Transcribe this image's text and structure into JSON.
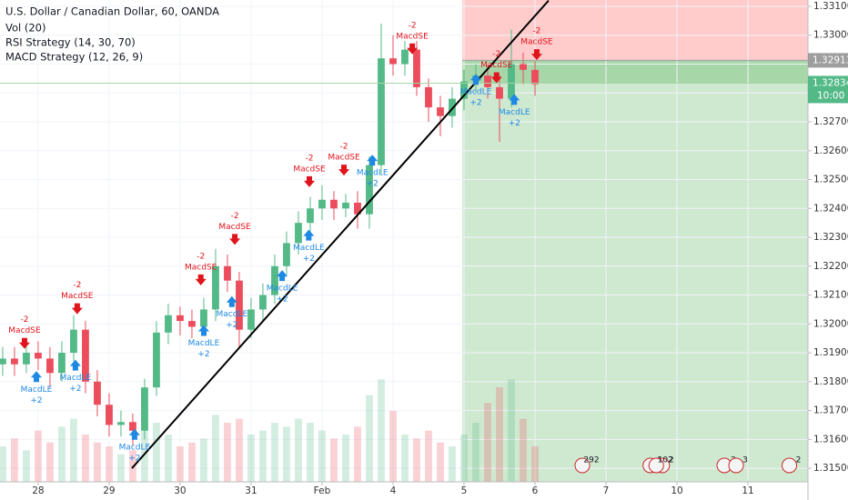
{
  "chart_data": {
    "type": "candlestick",
    "title": "U.S. Dollar / Canadian Dollar, 60, OANDA",
    "indicators": [
      "Vol (20)",
      "RSI Strategy (14, 30, 70)",
      "MACD Strategy (12, 26, 9)"
    ],
    "x": [
      -12,
      -8,
      -4,
      0,
      4,
      8,
      12,
      16,
      20,
      24,
      28,
      32,
      36,
      40,
      44,
      48,
      52,
      56,
      60,
      64,
      68,
      72,
      76,
      80,
      84,
      88,
      92,
      96,
      100,
      104,
      108,
      112,
      116,
      120,
      124,
      128,
      132,
      136,
      140,
      144,
      148,
      152,
      156,
      160,
      164,
      168
    ],
    "open": [
      1.3186,
      1.3188,
      1.3186,
      1.319,
      1.3188,
      1.3183,
      1.319,
      1.3198,
      1.318,
      1.3172,
      1.3165,
      1.3166,
      1.3163,
      1.3178,
      1.3197,
      1.3203,
      1.3201,
      1.3199,
      1.3205,
      1.322,
      1.3215,
      1.3198,
      1.3205,
      1.321,
      1.322,
      1.3228,
      1.3235,
      1.324,
      1.3243,
      1.324,
      1.3242,
      1.3238,
      1.3255,
      1.3292,
      1.329,
      1.3295,
      1.3282,
      1.3275,
      1.3272,
      1.3278,
      1.3284,
      1.3286,
      1.3282,
      1.3278,
      1.329,
      1.3288
    ],
    "high": [
      1.3192,
      1.3192,
      1.3194,
      1.3194,
      1.3192,
      1.3194,
      1.3203,
      1.3201,
      1.3184,
      1.3176,
      1.317,
      1.3169,
      1.3181,
      1.3201,
      1.3207,
      1.3206,
      1.3205,
      1.3209,
      1.3226,
      1.3224,
      1.3218,
      1.3209,
      1.3214,
      1.3224,
      1.3232,
      1.3239,
      1.3244,
      1.3248,
      1.3246,
      1.3245,
      1.3246,
      1.3258,
      1.3304,
      1.33,
      1.3298,
      1.3298,
      1.3285,
      1.3279,
      1.3282,
      1.3288,
      1.329,
      1.329,
      1.3286,
      1.3302,
      1.3294,
      1.3291
    ],
    "low": [
      1.3182,
      1.3182,
      1.3183,
      1.3184,
      1.3178,
      1.318,
      1.3187,
      1.3176,
      1.3168,
      1.3161,
      1.3161,
      1.3158,
      1.316,
      1.3175,
      1.3193,
      1.3196,
      1.3195,
      1.3196,
      1.3201,
      1.3211,
      1.3192,
      1.3195,
      1.3201,
      1.3207,
      1.3217,
      1.3224,
      1.3231,
      1.3236,
      1.3236,
      1.3237,
      1.3233,
      1.3233,
      1.3252,
      1.3286,
      1.3286,
      1.3279,
      1.327,
      1.3265,
      1.3268,
      1.3274,
      1.328,
      1.3278,
      1.3263,
      1.3275,
      1.3283,
      1.3279
    ],
    "close": [
      1.3188,
      1.3186,
      1.319,
      1.3188,
      1.3183,
      1.319,
      1.3198,
      1.318,
      1.3172,
      1.3165,
      1.3166,
      1.3163,
      1.3178,
      1.3197,
      1.3203,
      1.3201,
      1.3199,
      1.3205,
      1.322,
      1.3215,
      1.3198,
      1.3205,
      1.321,
      1.322,
      1.3228,
      1.3235,
      1.324,
      1.3243,
      1.324,
      1.3242,
      1.3238,
      1.3255,
      1.3292,
      1.329,
      1.3295,
      1.3282,
      1.3275,
      1.3272,
      1.3278,
      1.3284,
      1.3286,
      1.3282,
      1.3278,
      1.329,
      1.3288,
      1.3283
    ],
    "volume": [
      900,
      1100,
      800,
      1300,
      1000,
      1400,
      1600,
      1200,
      1000,
      900,
      700,
      800,
      1300,
      1500,
      1200,
      900,
      1000,
      1100,
      1700,
      1500,
      1600,
      1200,
      1300,
      1500,
      1400,
      1600,
      1500,
      1300,
      1100,
      1200,
      1400,
      2200,
      2600,
      1800,
      1200,
      1100,
      1300,
      1000,
      900,
      1200,
      1500,
      2000,
      2400,
      2600,
      1600,
      900
    ],
    "vlim": [
      0,
      3000
    ],
    "up_color": "#53b987",
    "down_color": "#eb4d5c",
    "xlim": [
      -12.9,
      260.3
    ],
    "xticks": [
      {
        "value": 0,
        "label": "28"
      },
      {
        "value": 24,
        "label": "29"
      },
      {
        "value": 48,
        "label": "30"
      },
      {
        "value": 72,
        "label": "31"
      },
      {
        "value": 96,
        "label": "Feb"
      },
      {
        "value": 120,
        "label": "4"
      },
      {
        "value": 144,
        "label": "5"
      },
      {
        "value": 168,
        "label": "6"
      },
      {
        "value": 192,
        "label": "7"
      },
      {
        "value": 216,
        "label": "10"
      },
      {
        "value": 240,
        "label": "11"
      }
    ],
    "ylim": [
      1.31453,
      1.33122
    ],
    "yticks": [
      {
        "value": 1.315,
        "label": "1.31500"
      },
      {
        "value": 1.316,
        "label": "1.31600"
      },
      {
        "value": 1.317,
        "label": "1.31700"
      },
      {
        "value": 1.318,
        "label": "1.31800"
      },
      {
        "value": 1.319,
        "label": "1.31900"
      },
      {
        "value": 1.32,
        "label": "1.32000"
      },
      {
        "value": 1.321,
        "label": "1.32100"
      },
      {
        "value": 1.322,
        "label": "1.32200"
      },
      {
        "value": 1.323,
        "label": "1.32300"
      },
      {
        "value": 1.324,
        "label": "1.32400"
      },
      {
        "value": 1.325,
        "label": "1.32500"
      },
      {
        "value": 1.326,
        "label": "1.32600"
      },
      {
        "value": 1.327,
        "label": "1.32700"
      },
      {
        "value": 1.328,
        "label": "1.32800"
      },
      {
        "value": 1.329,
        "label": "1.32900"
      },
      {
        "value": 1.33,
        "label": "1.33000"
      },
      {
        "value": 1.331,
        "label": "1.33100"
      }
    ],
    "position": {
      "entry": 1.32913,
      "current": 1.32834,
      "x_start": 143.4,
      "time_left": "10:00"
    },
    "trendline": {
      "x": [
        31.7,
        172.6
      ],
      "y": [
        1.315,
        1.3312
      ]
    },
    "signals": [
      {
        "label": "MacdSE",
        "qty": "-2",
        "x": -4.6,
        "y": 1.3192
      },
      {
        "label": "MacdLE",
        "qty": "+2",
        "x": -0.6,
        "y": 1.3183
      },
      {
        "label": "MacdLE",
        "qty": "+2",
        "x": 12.6,
        "y": 1.3187
      },
      {
        "label": "MacdSE",
        "qty": "-2",
        "x": 13.2,
        "y": 1.3204
      },
      {
        "label": "MacdLE",
        "qty": "+2",
        "x": 32.6,
        "y": 1.3163
      },
      {
        "label": "MacdLE",
        "qty": "+2",
        "x": 56,
        "y": 1.3199
      },
      {
        "label": "MacdSE",
        "qty": "-2",
        "x": 55,
        "y": 1.3214
      },
      {
        "label": "MacdLE",
        "qty": "+2",
        "x": 65.5,
        "y": 1.3209
      },
      {
        "label": "MacdSE",
        "qty": "-2",
        "x": 66.5,
        "y": 1.3228
      },
      {
        "label": "MacdLE",
        "qty": "+2",
        "x": 82.5,
        "y": 1.3218
      },
      {
        "label": "MacdLE",
        "qty": "+2",
        "x": 91.5,
        "y": 1.3232
      },
      {
        "label": "MacdSE",
        "qty": "-2",
        "x": 91.7,
        "y": 1.3248
      },
      {
        "label": "MacdSE",
        "qty": "-2",
        "x": 103.4,
        "y": 1.3252
      },
      {
        "label": "MacdLE",
        "qty": "+2",
        "x": 113,
        "y": 1.3258
      },
      {
        "label": "MacdSE",
        "qty": "-2",
        "x": 126.5,
        "y": 1.3294
      },
      {
        "label": "MacdLE",
        "qty": "+2",
        "x": 148,
        "y": 1.3286
      },
      {
        "label": "MacdSE",
        "qty": "-2",
        "x": 155,
        "y": 1.3284
      },
      {
        "label": "MacdLE",
        "qty": "+2",
        "x": 161,
        "y": 1.3279
      },
      {
        "label": "MacdSE",
        "qty": "-2",
        "x": 168.6,
        "y": 1.3292
      }
    ],
    "events": [
      {
        "x": 184,
        "label": "292"
      },
      {
        "x": 207,
        "label": "6"
      },
      {
        "x": 211,
        "label": "2"
      },
      {
        "x": 209,
        "label": "102"
      },
      {
        "x": 232,
        "label": "2"
      },
      {
        "x": 236,
        "label": "3"
      },
      {
        "x": 254,
        "label": "2"
      }
    ]
  }
}
